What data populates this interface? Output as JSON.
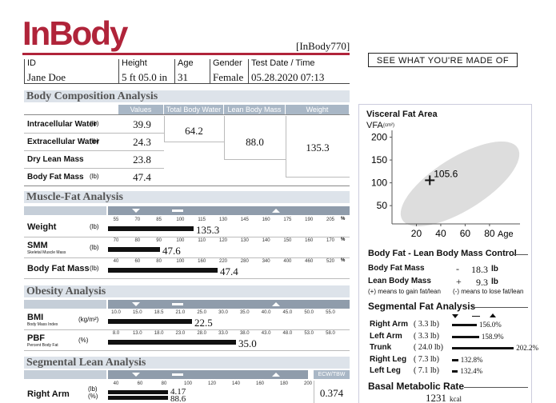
{
  "header": {
    "logo": "InBody",
    "model": "[InBody770]",
    "slogan": "SEE WHAT YOU'RE MADE OF"
  },
  "patient": [
    {
      "label": "ID",
      "value": "Jane Doe"
    },
    {
      "label": "Height",
      "value": "5 ft 05.0 in"
    },
    {
      "label": "Age",
      "value": "31"
    },
    {
      "label": "Gender",
      "value": "Female"
    },
    {
      "label": "Test Date / Time",
      "value": "05.28.2020  07:13"
    }
  ],
  "body_composition": {
    "title": "Body Composition Analysis",
    "columns": [
      "Values",
      "Total Body Water",
      "Lean Body Mass",
      "Weight"
    ],
    "rows": [
      {
        "label": "Intracellular Water",
        "unit": "(lb)",
        "value": "39.9"
      },
      {
        "label": "Extracellular Water",
        "unit": "(lb)",
        "value": "24.3"
      },
      {
        "label": "Dry Lean Mass",
        "value": "23.8"
      },
      {
        "label": "Body Fat Mass",
        "unit": "(lb)",
        "value": "47.4"
      }
    ],
    "total_body_water": "64.2",
    "lean_body_mass": "88.0",
    "weight": "135.3"
  },
  "muscle_fat": {
    "title": "Muscle-Fat Analysis",
    "tick_unit": "%",
    "rows": [
      {
        "label": "Weight",
        "unit": "(lb)",
        "ticks": [
          "55",
          "70",
          "85",
          "100",
          "115",
          "130",
          "145",
          "160",
          "175",
          "190",
          "205"
        ],
        "value": "135.3"
      },
      {
        "label": "SMM",
        "sublabel": "Skeletal Muscle Mass",
        "unit": "(lb)",
        "ticks": [
          "70",
          "80",
          "90",
          "100",
          "110",
          "120",
          "130",
          "140",
          "150",
          "160",
          "170"
        ],
        "value": "47.6"
      },
      {
        "label": "Body Fat Mass",
        "unit": "(lb)",
        "ticks": [
          "40",
          "60",
          "80",
          "100",
          "160",
          "220",
          "280",
          "340",
          "400",
          "460",
          "520"
        ],
        "value": "47.4"
      }
    ]
  },
  "obesity": {
    "title": "Obesity Analysis",
    "rows": [
      {
        "label": "BMI",
        "sublabel": "Body Mass Index",
        "unit": "(kg/m²)",
        "ticks": [
          "10.0",
          "15.0",
          "18.5",
          "21.0",
          "25.0",
          "30.0",
          "35.0",
          "40.0",
          "45.0",
          "50.0",
          "55.0"
        ],
        "value": "22.5"
      },
      {
        "label": "PBF",
        "sublabel": "Percent Body Fat",
        "unit": "(%)",
        "ticks": [
          "8.0",
          "13.0",
          "18.0",
          "23.0",
          "28.0",
          "33.0",
          "38.0",
          "43.0",
          "48.0",
          "53.0",
          "58.0"
        ],
        "value": "35.0"
      }
    ]
  },
  "segmental_lean": {
    "title": "Segmental Lean Analysis",
    "ecw_header": "ECW/TBW",
    "rows": [
      {
        "label": "Right Arm",
        "units": [
          "(lb)",
          "(%)"
        ],
        "ticks": [
          "40",
          "60",
          "80",
          "100",
          "120",
          "140",
          "160",
          "180",
          "200"
        ],
        "values": [
          "4.17",
          "88.6"
        ],
        "ecw_tbw": "0.374"
      }
    ]
  },
  "visceral_fat": {
    "title": "Visceral Fat Area",
    "y_label": "VFA",
    "y_unit": "(cm²)",
    "x_label": "Age",
    "ylim": [
      10,
      215
    ],
    "yticks": [
      50,
      100,
      150,
      200
    ],
    "xlim": [
      0,
      105
    ],
    "xticks": [
      20,
      40,
      60,
      80
    ],
    "value": 105.6
  },
  "control": {
    "title": "Body Fat - Lean Body Mass Control",
    "rows": [
      {
        "label": "Body Fat Mass",
        "sign": "-",
        "value": "18.3",
        "unit": "lb"
      },
      {
        "label": "Lean Body Mass",
        "sign": "+",
        "value": "9.3",
        "unit": "lb"
      }
    ],
    "notes": [
      "(+) means to gain fat/lean",
      "(-) means to lose fat/lean"
    ]
  },
  "segmental_fat": {
    "title": "Segmental Fat Analysis",
    "rows": [
      {
        "label": "Right Arm",
        "mass": "( 3.3 lb)",
        "percent": "156.0%"
      },
      {
        "label": "Left Arm",
        "mass": "( 3.3 lb)",
        "percent": "158.9%"
      },
      {
        "label": "Trunk",
        "mass": "( 24.0 lb)",
        "percent": "202.2%"
      },
      {
        "label": "Right Leg",
        "mass": "( 7.3 lb)",
        "percent": "132.8%"
      },
      {
        "label": "Left Leg",
        "mass": "( 7.1 lb)",
        "percent": "132.4%"
      }
    ]
  },
  "bmr": {
    "title": "Basal Metabolic Rate",
    "value": "1231",
    "unit": "kcal"
  }
}
